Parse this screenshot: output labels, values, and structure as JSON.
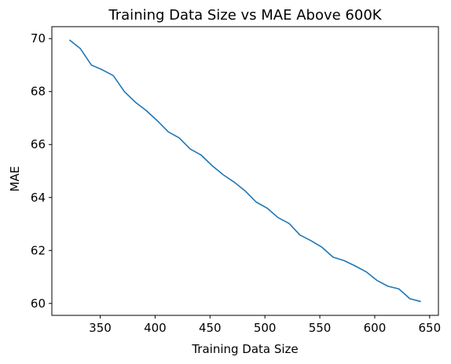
{
  "chart_data": {
    "type": "line",
    "title": "Training Data Size vs MAE Above 600K",
    "xlabel": "Training Data Size",
    "ylabel": "MAE",
    "xlim": [
      306,
      658
    ],
    "ylim": [
      59.55,
      70.45
    ],
    "xticks": [
      350,
      400,
      450,
      500,
      550,
      600,
      650
    ],
    "yticks": [
      60,
      62,
      64,
      66,
      68,
      70
    ],
    "grid": false,
    "series": [
      {
        "color": "#1f77b4",
        "x": [
          322,
          332,
          342,
          352,
          362,
          372,
          382,
          392,
          402,
          412,
          422,
          432,
          442,
          452,
          462,
          472,
          482,
          492,
          502,
          512,
          522,
          532,
          542,
          552,
          562,
          572,
          582,
          592,
          602,
          612,
          622,
          632,
          642
        ],
        "y": [
          69.95,
          69.62,
          69.0,
          68.82,
          68.6,
          68.0,
          67.6,
          67.28,
          66.9,
          66.48,
          66.25,
          65.83,
          65.6,
          65.2,
          64.86,
          64.58,
          64.25,
          63.83,
          63.6,
          63.24,
          63.02,
          62.58,
          62.37,
          62.12,
          61.75,
          61.62,
          61.42,
          61.2,
          60.87,
          60.65,
          60.55,
          60.18,
          60.07
        ]
      }
    ]
  }
}
